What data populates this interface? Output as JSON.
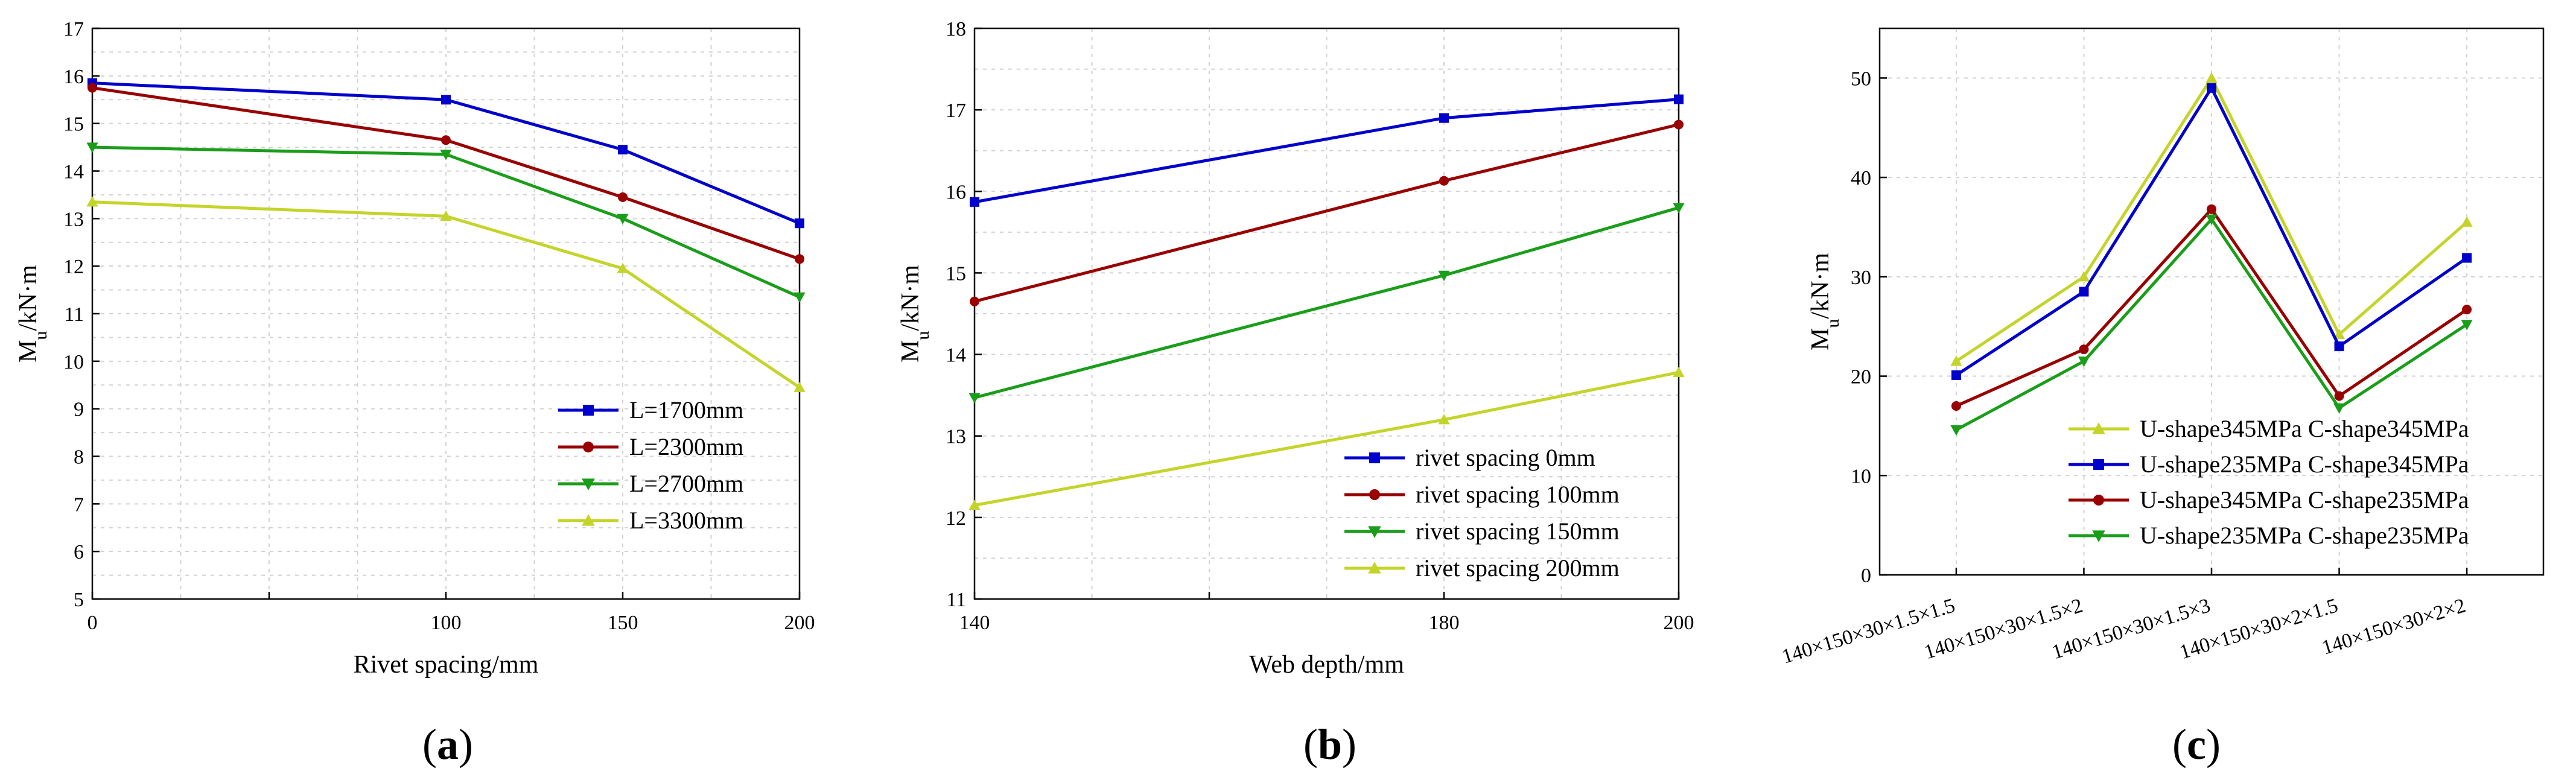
{
  "chart_data": [
    {
      "id": "a",
      "type": "line",
      "panel_label": "(a)",
      "panel_letter": "a",
      "xlabel": "Rivet spacing/mm",
      "ylabel_main": "M",
      "ylabel_sub": "u",
      "ylabel_rest": "/kN·m",
      "xlim": [
        0,
        200
      ],
      "ylim": [
        5,
        17
      ],
      "xticks": [
        0,
        100,
        150,
        200
      ],
      "yticks": [
        5,
        6,
        7,
        8,
        9,
        10,
        11,
        12,
        13,
        14,
        15,
        16,
        17
      ],
      "legend_position": "bottom-right",
      "series": [
        {
          "name": "L=1700mm",
          "color": "#0000cc",
          "marker": "square",
          "x": [
            0,
            100,
            150,
            200
          ],
          "y": [
            15.85,
            15.5,
            14.45,
            12.9
          ]
        },
        {
          "name": "L=2300mm",
          "color": "#990000",
          "marker": "circle",
          "x": [
            0,
            100,
            150,
            200
          ],
          "y": [
            15.75,
            14.65,
            13.45,
            12.15
          ]
        },
        {
          "name": "L=2700mm",
          "color": "#1a9e1a",
          "marker": "triangle-down",
          "x": [
            0,
            100,
            150,
            200
          ],
          "y": [
            14.5,
            14.35,
            13.0,
            11.35
          ]
        },
        {
          "name": "L=3300mm",
          "color": "#c4d42a",
          "marker": "triangle-up",
          "x": [
            0,
            100,
            150,
            200
          ],
          "y": [
            13.35,
            13.05,
            11.95,
            9.45
          ]
        }
      ]
    },
    {
      "id": "b",
      "type": "line",
      "panel_label": "(b)",
      "panel_letter": "b",
      "xlabel": "Web depth/mm",
      "ylabel_main": "M",
      "ylabel_sub": "u",
      "ylabel_rest": "/kN·m",
      "xlim": [
        140,
        200
      ],
      "ylim": [
        11,
        18
      ],
      "xticks": [
        140,
        180,
        200
      ],
      "yticks": [
        11,
        12,
        13,
        14,
        15,
        16,
        17,
        18
      ],
      "legend_position": "bottom-right",
      "series": [
        {
          "name": "rivet spacing 0mm",
          "color": "#0000cc",
          "marker": "square",
          "x": [
            140,
            180,
            200
          ],
          "y": [
            15.87,
            16.9,
            17.13
          ]
        },
        {
          "name": "rivet spacing 100mm",
          "color": "#990000",
          "marker": "circle",
          "x": [
            140,
            180,
            200
          ],
          "y": [
            14.65,
            16.13,
            16.82
          ]
        },
        {
          "name": "rivet spacing 150mm",
          "color": "#1a9e1a",
          "marker": "triangle-down",
          "x": [
            140,
            180,
            200
          ],
          "y": [
            13.47,
            14.97,
            15.8
          ]
        },
        {
          "name": "rivet spacing 200mm",
          "color": "#c4d42a",
          "marker": "triangle-up",
          "x": [
            140,
            180,
            200
          ],
          "y": [
            12.15,
            13.2,
            13.78
          ]
        }
      ]
    },
    {
      "id": "c",
      "type": "line",
      "panel_label": "(c)",
      "panel_letter": "c",
      "xlabel": "",
      "ylabel_main": "M",
      "ylabel_sub": "u",
      "ylabel_rest": "/kN·m",
      "categories": [
        "140×150×30×1.5×1.5",
        "140×150×30×1.5×2",
        "140×150×30×1.5×3",
        "140×150×30×2×1.5",
        "140×150×30×2×2"
      ],
      "ylim": [
        0,
        55
      ],
      "yticks": [
        0,
        10,
        20,
        30,
        40,
        50
      ],
      "legend_position": "bottom-right",
      "series": [
        {
          "name": "U-shape345MPa  C-shape345MPa",
          "color": "#c4d42a",
          "marker": "triangle-up",
          "values": [
            21.5,
            30.0,
            50.0,
            24.2,
            35.5
          ]
        },
        {
          "name": "U-shape235MPa  C-shape345MPa",
          "color": "#0000cc",
          "marker": "square",
          "values": [
            20.1,
            28.5,
            49.0,
            23.0,
            31.9
          ]
        },
        {
          "name": "U-shape345MPa  C-shape235MPa",
          "color": "#990000",
          "marker": "circle",
          "values": [
            17.0,
            22.7,
            36.8,
            18.0,
            26.7
          ]
        },
        {
          "name": "U-shape235MPa  C-shape235MPa",
          "color": "#1a9e1a",
          "marker": "triangle-down",
          "values": [
            14.6,
            21.5,
            35.8,
            16.8,
            25.2
          ]
        }
      ]
    }
  ]
}
